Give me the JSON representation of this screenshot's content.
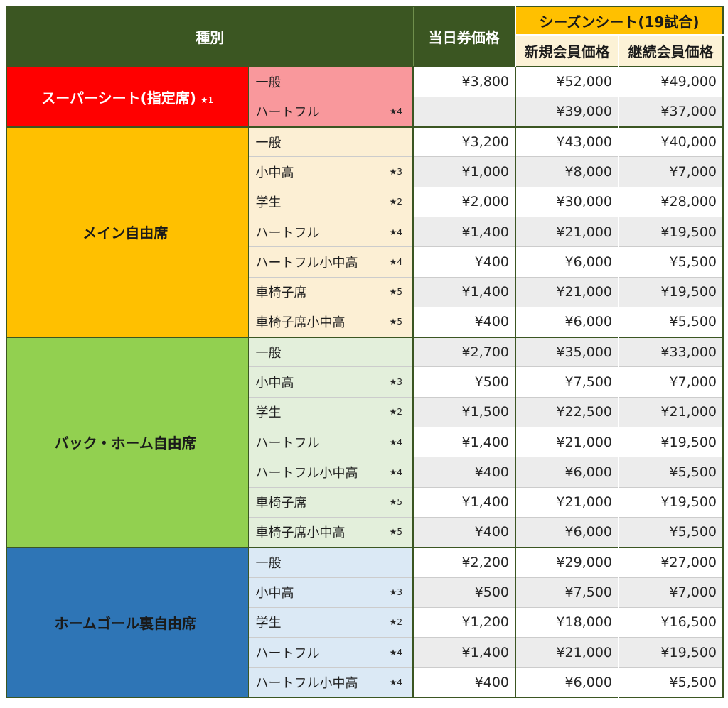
{
  "table": {
    "header": {
      "category": "種別",
      "day_price": "当日券価格",
      "season": "シーズンシート(19試合)",
      "new_member": "新規会員価格",
      "renewal_member": "継続会員価格"
    },
    "colors": {
      "header_green": "#3B5622",
      "header_gold": "#FFC000",
      "header_cream": "#FCF2D6",
      "border_green": "#3B5622",
      "row_alt_gray": "#ECECEC",
      "row_divider": "#CCCCCC",
      "price_text": "#262626"
    },
    "groups": [
      {
        "label": "スーパーシート(指定席)",
        "note": "★1",
        "bg": "#FF0000",
        "fg": "#FFFFFF",
        "sub_bg": "#F9989C",
        "rows": [
          {
            "sub": "一般",
            "star": "",
            "day": "¥3,800",
            "new": "¥52,000",
            "renew": "¥49,000"
          },
          {
            "sub": "ハートフル",
            "star": "★4",
            "day": "",
            "new": "¥39,000",
            "renew": "¥37,000"
          }
        ]
      },
      {
        "label": "メイン自由席",
        "note": "",
        "bg": "#FFC000",
        "fg": "#1A1A1A",
        "sub_bg": "#FCEFD4",
        "rows": [
          {
            "sub": "一般",
            "star": "",
            "day": "¥3,200",
            "new": "¥43,000",
            "renew": "¥40,000"
          },
          {
            "sub": "小中高",
            "star": "★3",
            "day": "¥1,000",
            "new": "¥8,000",
            "renew": "¥7,000"
          },
          {
            "sub": "学生",
            "star": "★2",
            "day": "¥2,000",
            "new": "¥30,000",
            "renew": "¥28,000"
          },
          {
            "sub": "ハートフル",
            "star": "★4",
            "day": "¥1,400",
            "new": "¥21,000",
            "renew": "¥19,500"
          },
          {
            "sub": "ハートフル小中高",
            "star": "★4",
            "day": "¥400",
            "new": "¥6,000",
            "renew": "¥5,500"
          },
          {
            "sub": "車椅子席",
            "star": "★5",
            "day": "¥1,400",
            "new": "¥21,000",
            "renew": "¥19,500"
          },
          {
            "sub": "車椅子席小中高",
            "star": "★5",
            "day": "¥400",
            "new": "¥6,000",
            "renew": "¥5,500"
          }
        ]
      },
      {
        "label": "バック・ホーム自由席",
        "note": "",
        "bg": "#92D050",
        "fg": "#1A1A1A",
        "sub_bg": "#E3EFDB",
        "rows": [
          {
            "sub": "一般",
            "star": "",
            "day": "¥2,700",
            "new": "¥35,000",
            "renew": "¥33,000"
          },
          {
            "sub": "小中高",
            "star": "★3",
            "day": "¥500",
            "new": "¥7,500",
            "renew": "¥7,000"
          },
          {
            "sub": "学生",
            "star": "★2",
            "day": "¥1,500",
            "new": "¥22,500",
            "renew": "¥21,000"
          },
          {
            "sub": "ハートフル",
            "star": "★4",
            "day": "¥1,400",
            "new": "¥21,000",
            "renew": "¥19,500"
          },
          {
            "sub": "ハートフル小中高",
            "star": "★4",
            "day": "¥400",
            "new": "¥6,000",
            "renew": "¥5,500"
          },
          {
            "sub": "車椅子席",
            "star": "★5",
            "day": "¥1,400",
            "new": "¥21,000",
            "renew": "¥19,500"
          },
          {
            "sub": "車椅子席小中高",
            "star": "★5",
            "day": "¥400",
            "new": "¥6,000",
            "renew": "¥5,500"
          }
        ]
      },
      {
        "label": "ホームゴール裏自由席",
        "note": "",
        "bg": "#2E75B6",
        "fg": "#1A1A1A",
        "sub_bg": "#DBE9F5",
        "rows": [
          {
            "sub": "一般",
            "star": "",
            "day": "¥2,200",
            "new": "¥29,000",
            "renew": "¥27,000"
          },
          {
            "sub": "小中高",
            "star": "★3",
            "day": "¥500",
            "new": "¥7,500",
            "renew": "¥7,000"
          },
          {
            "sub": "学生",
            "star": "★2",
            "day": "¥1,200",
            "new": "¥18,000",
            "renew": "¥16,500"
          },
          {
            "sub": "ハートフル",
            "star": "★4",
            "day": "¥1,400",
            "new": "¥21,000",
            "renew": "¥19,500"
          },
          {
            "sub": "ハートフル小中高",
            "star": "★4",
            "day": "¥400",
            "new": "¥6,000",
            "renew": "¥5,500"
          }
        ]
      }
    ]
  }
}
